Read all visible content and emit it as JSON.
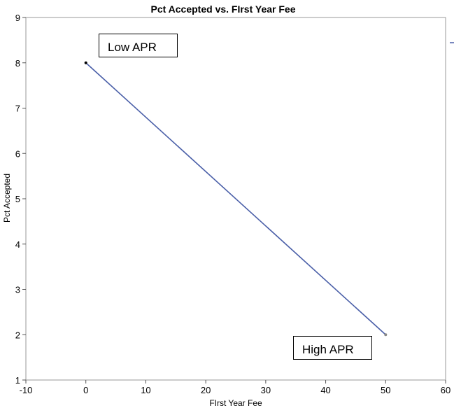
{
  "chart_data": {
    "type": "line",
    "title": "Pct Accepted vs. FIrst Year Fee",
    "xlabel": "FIrst Year Fee",
    "ylabel": "Pct Accepted",
    "xlim": [
      -10,
      60
    ],
    "ylim": [
      1,
      9
    ],
    "xticks": [
      -10,
      0,
      10,
      20,
      30,
      40,
      50,
      60
    ],
    "yticks": [
      1,
      2,
      3,
      4,
      5,
      6,
      7,
      8,
      9
    ],
    "series": [
      {
        "points": [
          {
            "x": 0,
            "y": 8
          },
          {
            "x": 50,
            "y": 2
          }
        ],
        "color": "#4a5fa8"
      }
    ],
    "annotations": [
      {
        "id": "low",
        "text": "Low APR"
      },
      {
        "id": "high",
        "text": "High APR"
      }
    ],
    "grid": false
  }
}
